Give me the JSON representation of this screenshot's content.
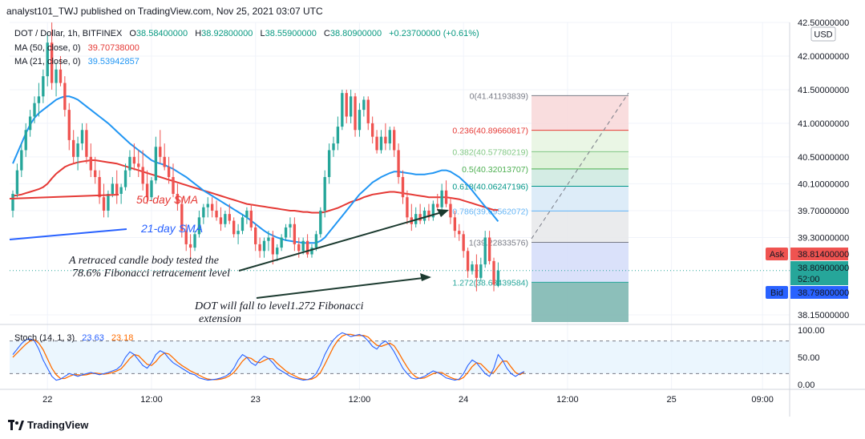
{
  "header": {
    "text": "analyst101_TWJ published on TradingView.com, Nov 25, 2021 03:07 UTC"
  },
  "footer": {
    "brand": "TradingView"
  },
  "chart_data": {
    "type": "candlestick",
    "symbol_line": {
      "symbol": "DOT / Dollar, 1h, BITFINEX",
      "o_label": "O",
      "o_value": "38.58400000",
      "h_label": "H",
      "h_value": "38.92800000",
      "l_label": "L",
      "l_value": "38.55900000",
      "c_label": "C",
      "c_value": "38.80900000",
      "change": "+0.23700000 (+0.61%)"
    },
    "ma50": {
      "label": "MA (50, close, 0)",
      "value": "39.70738000",
      "color": "#e53935"
    },
    "ma21": {
      "label": "MA (21, close, 0)",
      "value": "39.53942857",
      "color": "#2196f3"
    },
    "currency": "USD",
    "y_ticks": [
      "42.50000000",
      "42.00000000",
      "41.50000000",
      "41.00000000",
      "40.50000000",
      "40.10000000",
      "39.70000000",
      "39.30000000",
      "38.15000000"
    ],
    "y_tick_values": [
      42.5,
      42.0,
      41.5,
      41.0,
      40.5,
      40.1,
      39.7,
      39.3,
      38.15
    ],
    "ylim": [
      38.0,
      42.6
    ],
    "x_ticks": [
      "22",
      "12:00",
      "23",
      "12:00",
      "24",
      "12:00",
      "25",
      "09:00"
    ],
    "x_tick_index": [
      8,
      32,
      56,
      80,
      104,
      128,
      152,
      173
    ],
    "candles": [
      [
        39.7,
        40.0,
        39.6,
        39.95
      ],
      [
        39.95,
        40.4,
        39.9,
        40.3
      ],
      [
        40.3,
        40.7,
        40.2,
        40.6
      ],
      [
        40.6,
        41.0,
        40.5,
        40.9
      ],
      [
        40.9,
        41.2,
        40.8,
        41.1
      ],
      [
        41.1,
        41.4,
        41.0,
        41.3
      ],
      [
        41.3,
        41.6,
        41.1,
        41.4
      ],
      [
        41.4,
        41.8,
        41.3,
        41.7
      ],
      [
        41.7,
        42.35,
        41.55,
        42.2
      ],
      [
        42.2,
        42.5,
        41.5,
        41.6
      ],
      [
        41.6,
        41.9,
        41.4,
        41.8
      ],
      [
        41.8,
        42.0,
        41.55,
        41.6
      ],
      [
        41.6,
        41.7,
        41.1,
        41.2
      ],
      [
        41.2,
        41.3,
        40.6,
        40.75
      ],
      [
        40.75,
        40.9,
        40.4,
        40.5
      ],
      [
        40.5,
        40.8,
        40.3,
        40.7
      ],
      [
        40.7,
        41.0,
        40.6,
        40.9
      ],
      [
        40.9,
        41.0,
        40.4,
        40.5
      ],
      [
        40.5,
        40.7,
        40.2,
        40.3
      ],
      [
        40.3,
        40.5,
        40.1,
        40.2
      ],
      [
        40.2,
        40.3,
        39.8,
        39.9
      ],
      [
        39.9,
        40.1,
        39.6,
        39.7
      ],
      [
        39.7,
        40.0,
        39.6,
        39.95
      ],
      [
        39.95,
        40.2,
        39.9,
        40.1
      ],
      [
        40.1,
        40.3,
        39.8,
        39.95
      ],
      [
        39.95,
        40.1,
        39.8,
        40.05
      ],
      [
        40.05,
        40.4,
        40.0,
        40.3
      ],
      [
        40.3,
        40.6,
        40.2,
        40.5
      ],
      [
        40.5,
        40.7,
        40.3,
        40.4
      ],
      [
        40.4,
        40.6,
        40.2,
        40.35
      ],
      [
        40.35,
        40.6,
        40.0,
        40.1
      ],
      [
        40.1,
        40.3,
        39.8,
        39.9
      ],
      [
        39.9,
        40.2,
        39.85,
        40.15
      ],
      [
        40.15,
        40.8,
        40.1,
        40.65
      ],
      [
        40.65,
        40.9,
        40.4,
        40.5
      ],
      [
        40.5,
        40.7,
        40.3,
        40.35
      ],
      [
        40.35,
        40.5,
        40.1,
        40.2
      ],
      [
        40.2,
        40.4,
        39.9,
        39.95
      ],
      [
        39.95,
        40.1,
        39.7,
        39.8
      ],
      [
        39.8,
        39.9,
        39.3,
        39.4
      ],
      [
        39.4,
        39.5,
        39.1,
        39.2
      ],
      [
        39.2,
        39.35,
        39.0,
        39.15
      ],
      [
        39.15,
        39.4,
        39.1,
        39.35
      ],
      [
        39.35,
        39.7,
        39.3,
        39.6
      ],
      [
        39.6,
        39.8,
        39.5,
        39.75
      ],
      [
        39.75,
        39.9,
        39.6,
        39.8
      ],
      [
        39.8,
        39.9,
        39.6,
        39.7
      ],
      [
        39.7,
        39.85,
        39.55,
        39.6
      ],
      [
        39.6,
        39.75,
        39.4,
        39.5
      ],
      [
        39.5,
        39.7,
        39.45,
        39.65
      ],
      [
        39.65,
        39.8,
        39.5,
        39.55
      ],
      [
        39.55,
        39.6,
        39.3,
        39.35
      ],
      [
        39.35,
        39.5,
        39.2,
        39.4
      ],
      [
        39.4,
        39.65,
        39.35,
        39.6
      ],
      [
        39.6,
        39.75,
        39.5,
        39.7
      ],
      [
        39.7,
        39.8,
        39.4,
        39.45
      ],
      [
        39.45,
        39.5,
        39.1,
        39.2
      ],
      [
        39.2,
        39.3,
        39.0,
        39.1
      ],
      [
        39.1,
        39.3,
        39.0,
        39.25
      ],
      [
        39.25,
        39.4,
        39.1,
        39.3
      ],
      [
        39.3,
        39.4,
        38.9,
        39.05
      ],
      [
        39.05,
        39.2,
        38.95,
        39.15
      ],
      [
        39.15,
        39.35,
        39.1,
        39.3
      ],
      [
        39.3,
        39.5,
        39.25,
        39.45
      ],
      [
        39.45,
        39.6,
        39.3,
        39.5
      ],
      [
        39.5,
        39.6,
        39.1,
        39.2
      ],
      [
        39.2,
        39.3,
        39.0,
        39.1
      ],
      [
        39.1,
        39.3,
        39.05,
        39.25
      ],
      [
        39.25,
        39.35,
        39.0,
        39.05
      ],
      [
        39.05,
        39.2,
        39.0,
        39.15
      ],
      [
        39.15,
        39.4,
        39.1,
        39.35
      ],
      [
        39.35,
        39.75,
        39.3,
        39.7
      ],
      [
        39.7,
        40.3,
        39.6,
        40.2
      ],
      [
        40.2,
        40.7,
        40.1,
        40.6
      ],
      [
        40.6,
        40.8,
        40.5,
        40.7
      ],
      [
        40.7,
        41.1,
        40.6,
        40.95
      ],
      [
        40.95,
        41.5,
        40.9,
        41.45
      ],
      [
        41.45,
        41.5,
        41.0,
        41.1
      ],
      [
        41.1,
        41.5,
        41.0,
        41.4
      ],
      [
        41.4,
        41.45,
        40.8,
        40.9
      ],
      [
        40.9,
        41.3,
        40.8,
        41.2
      ],
      [
        41.2,
        41.4,
        41.1,
        41.35
      ],
      [
        41.35,
        41.4,
        40.9,
        41.0
      ],
      [
        41.0,
        41.1,
        40.7,
        40.8
      ],
      [
        40.8,
        40.9,
        40.55,
        40.6
      ],
      [
        40.6,
        40.9,
        40.55,
        40.8
      ],
      [
        40.8,
        41.0,
        40.6,
        40.7
      ],
      [
        40.7,
        40.95,
        40.6,
        40.9
      ],
      [
        40.9,
        40.95,
        40.5,
        40.6
      ],
      [
        40.6,
        40.7,
        40.1,
        40.2
      ],
      [
        40.2,
        40.3,
        39.8,
        39.9
      ],
      [
        39.9,
        40.0,
        39.5,
        39.6
      ],
      [
        39.6,
        39.8,
        39.4,
        39.5
      ],
      [
        39.5,
        39.75,
        39.45,
        39.65
      ],
      [
        39.65,
        39.8,
        39.5,
        39.55
      ],
      [
        39.55,
        39.75,
        39.5,
        39.7
      ],
      [
        39.7,
        39.8,
        39.55,
        39.6
      ],
      [
        39.6,
        39.85,
        39.55,
        39.8
      ],
      [
        39.8,
        39.95,
        39.7,
        39.75
      ],
      [
        39.75,
        40.1,
        39.7,
        40.0
      ],
      [
        40.0,
        40.15,
        39.75,
        39.8
      ],
      [
        39.8,
        39.9,
        39.5,
        39.6
      ],
      [
        39.6,
        39.7,
        39.3,
        39.4
      ],
      [
        39.4,
        39.5,
        39.25,
        39.35
      ],
      [
        39.35,
        39.4,
        39.0,
        39.1
      ],
      [
        39.1,
        39.15,
        38.7,
        38.8
      ],
      [
        38.8,
        38.95,
        38.75,
        38.9
      ],
      [
        38.9,
        39.05,
        38.5,
        38.7
      ],
      [
        38.7,
        39.0,
        38.65,
        38.9
      ],
      [
        38.9,
        39.4,
        38.85,
        39.3
      ],
      [
        39.3,
        39.4,
        38.9,
        38.95
      ],
      [
        38.95,
        39.0,
        38.5,
        38.6
      ],
      [
        38.58,
        38.93,
        38.56,
        38.81
      ]
    ],
    "ma50_values": [
      39.92,
      39.93,
      39.94,
      39.96,
      39.98,
      40.0,
      40.02,
      40.05,
      40.1,
      40.18,
      40.25,
      40.3,
      40.35,
      40.38,
      40.4,
      40.42,
      40.43,
      40.44,
      40.45,
      40.45,
      40.44,
      40.43,
      40.42,
      40.41,
      40.4,
      40.38,
      40.36,
      40.34,
      40.32,
      40.3,
      40.28,
      40.26,
      40.24,
      40.22,
      40.2,
      40.18,
      40.16,
      40.14,
      40.12,
      40.1,
      40.08,
      40.06,
      40.04,
      40.02,
      40.0,
      39.98,
      39.96,
      39.94,
      39.92,
      39.9,
      39.88,
      39.86,
      39.84,
      39.82,
      39.8,
      39.79,
      39.78,
      39.77,
      39.76,
      39.75,
      39.74,
      39.73,
      39.72,
      39.71,
      39.7,
      39.7,
      39.69,
      39.68,
      39.68,
      39.67,
      39.67,
      39.67,
      39.68,
      39.7,
      39.72,
      39.74,
      39.77,
      39.8,
      39.83,
      39.85,
      39.87,
      39.9,
      39.92,
      39.94,
      39.95,
      39.96,
      39.97,
      39.98,
      39.98,
      39.97,
      39.96,
      39.95,
      39.94,
      39.93,
      39.92,
      39.91,
      39.9,
      39.9,
      39.9,
      39.9,
      39.9,
      39.89,
      39.88,
      39.87,
      39.85,
      39.83,
      39.81,
      39.79,
      39.77,
      39.75,
      39.73,
      39.71,
      39.71
    ],
    "ma21_values": [
      40.4,
      40.55,
      40.7,
      40.85,
      40.98,
      41.08,
      41.15,
      41.2,
      41.25,
      41.3,
      41.35,
      41.38,
      41.4,
      41.4,
      41.38,
      41.35,
      41.3,
      41.25,
      41.2,
      41.15,
      41.1,
      41.05,
      41.0,
      40.94,
      40.88,
      40.82,
      40.76,
      40.7,
      40.65,
      40.6,
      40.55,
      40.5,
      40.45,
      40.42,
      40.4,
      40.38,
      40.35,
      40.32,
      40.28,
      40.24,
      40.2,
      40.15,
      40.1,
      40.05,
      40.0,
      39.96,
      39.92,
      39.88,
      39.84,
      39.8,
      39.76,
      39.72,
      39.68,
      39.64,
      39.6,
      39.55,
      39.5,
      39.45,
      39.4,
      39.36,
      39.33,
      39.3,
      39.28,
      39.26,
      39.25,
      39.24,
      39.23,
      39.22,
      39.22,
      39.22,
      39.22,
      39.25,
      39.3,
      39.38,
      39.46,
      39.54,
      39.62,
      39.7,
      39.78,
      39.86,
      39.94,
      40.0,
      40.06,
      40.12,
      40.16,
      40.2,
      40.23,
      40.26,
      40.28,
      40.28,
      40.27,
      40.26,
      40.25,
      40.24,
      40.24,
      40.24,
      40.25,
      40.26,
      40.28,
      40.3,
      40.3,
      40.28,
      40.24,
      40.2,
      40.14,
      40.08,
      40.0,
      39.92,
      39.84,
      39.76,
      39.7,
      39.62,
      39.54
    ],
    "fibonacci": {
      "x_start_index": 122,
      "x_end_index": 146,
      "levels": [
        {
          "ratio": "0",
          "price": 41.41193839,
          "label": "0(41.41193839)",
          "color": "#787b86"
        },
        {
          "ratio": "0.236",
          "price": 40.89660817,
          "label": "0.236(40.89660817)",
          "color": "#e53935"
        },
        {
          "ratio": "0.382",
          "price": 40.57780219,
          "label": "0.382(40.57780219)",
          "color": "#81c784"
        },
        {
          "ratio": "0.5",
          "price": 40.32013707,
          "label": "0.5(40.32013707)",
          "color": "#4caf50"
        },
        {
          "ratio": "0.618",
          "price": 40.06247196,
          "label": "0.618(40.06247196)",
          "color": "#009688"
        },
        {
          "ratio": "0.786",
          "price": 39.69562072,
          "label": "0.786(39.69562072)",
          "color": "#64b5f6"
        },
        {
          "ratio": "1",
          "price": 39.22833576,
          "label": "1(39.22833576)",
          "color": "#787b86"
        },
        {
          "ratio": "1.272",
          "price": 38.63439584,
          "label": "1.272(38.63439584)",
          "color": "#26a69a"
        }
      ]
    },
    "price_labels": {
      "ask_label": "Ask",
      "ask_value": "38.81400000",
      "last_value": "38.80900000",
      "countdown": "52:00",
      "bid_label": "Bid",
      "bid_value": "38.79800000"
    },
    "annotations": {
      "sma50": "50-day SMA",
      "sma21": "21-day SMA",
      "note1_line1": "A retraced candle body tested the",
      "note1_line2": "78.6% Fibonacci retracement level",
      "note2_line1": "DOT will fall to  level1.272 Fibonacci",
      "note2_line2": "extension"
    },
    "stoch": {
      "label": "Stoch (14, 1, 3)",
      "k_value": "23.63",
      "d_value": "23.18",
      "k_color": "#2962ff",
      "d_color": "#ff6d00",
      "y_ticks": [
        "100.00",
        "50.00",
        "0.00"
      ],
      "upper": 80,
      "lower": 20,
      "k": [
        55,
        65,
        75,
        82,
        84,
        80,
        65,
        45,
        30,
        15,
        8,
        10,
        15,
        20,
        18,
        15,
        18,
        20,
        22,
        20,
        18,
        20,
        22,
        25,
        28,
        35,
        50,
        60,
        55,
        45,
        35,
        30,
        40,
        55,
        62,
        58,
        48,
        40,
        35,
        30,
        25,
        20,
        18,
        12,
        10,
        8,
        9,
        10,
        12,
        15,
        20,
        30,
        45,
        55,
        50,
        40,
        35,
        45,
        52,
        48,
        40,
        30,
        25,
        20,
        15,
        12,
        10,
        8,
        9,
        12,
        20,
        35,
        55,
        70,
        82,
        90,
        95,
        92,
        88,
        90,
        92,
        88,
        80,
        70,
        65,
        75,
        80,
        72,
        60,
        45,
        30,
        20,
        12,
        10,
        12,
        15,
        20,
        25,
        22,
        18,
        12,
        10,
        8,
        10,
        20,
        35,
        45,
        40,
        30,
        20,
        15,
        30,
        55,
        45,
        30,
        20,
        15,
        20,
        24
      ],
      "d": [
        50,
        58,
        66,
        74,
        80,
        82,
        76,
        64,
        47,
        30,
        18,
        11,
        11,
        15,
        18,
        18,
        17,
        18,
        20,
        21,
        20,
        19,
        20,
        22,
        25,
        29,
        38,
        48,
        55,
        53,
        45,
        37,
        35,
        42,
        52,
        58,
        56,
        49,
        41,
        35,
        30,
        25,
        21,
        17,
        13,
        10,
        9,
        9,
        10,
        12,
        16,
        22,
        32,
        43,
        50,
        48,
        42,
        40,
        44,
        48,
        47,
        39,
        32,
        25,
        20,
        16,
        12,
        10,
        9,
        10,
        14,
        22,
        37,
        53,
        69,
        81,
        89,
        92,
        92,
        90,
        90,
        90,
        87,
        79,
        72,
        70,
        73,
        76,
        71,
        59,
        45,
        32,
        21,
        14,
        11,
        12,
        16,
        20,
        22,
        22,
        17,
        13,
        10,
        9,
        13,
        22,
        33,
        40,
        38,
        30,
        22,
        22,
        33,
        43,
        43,
        32,
        22,
        18,
        23
      ]
    }
  }
}
